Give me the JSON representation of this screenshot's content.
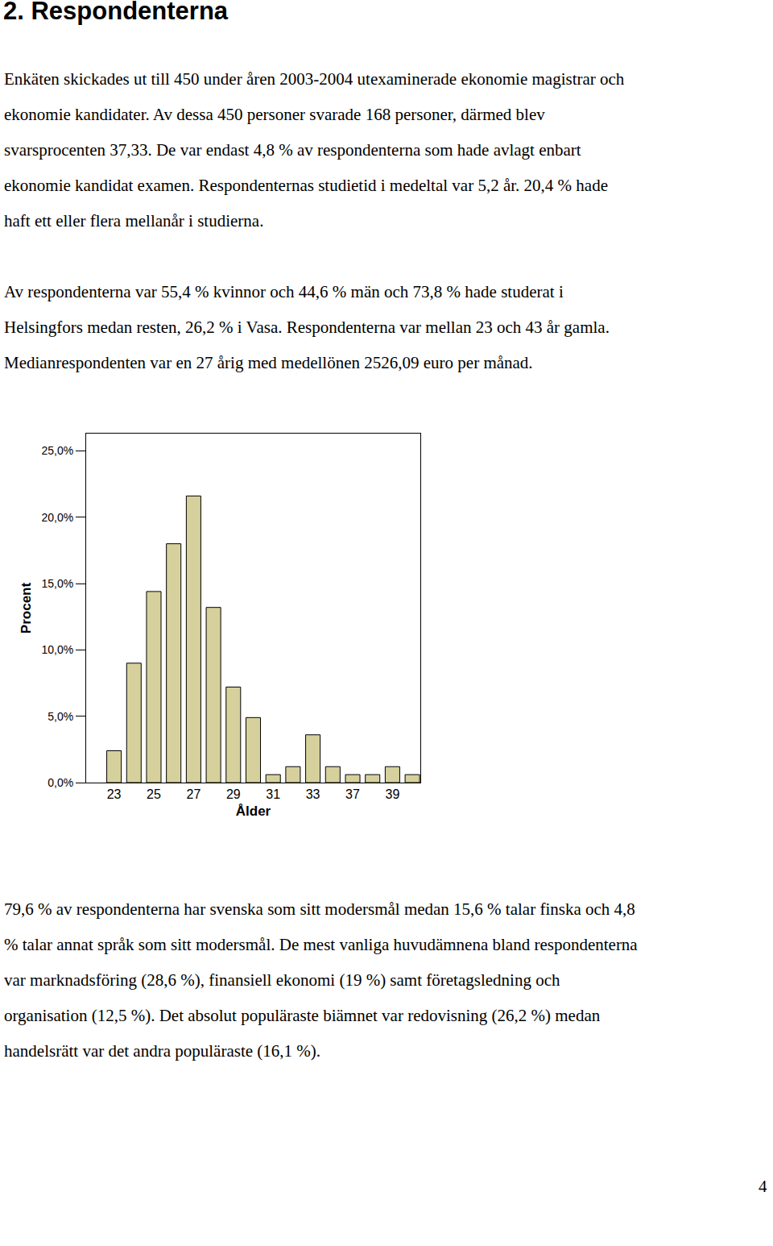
{
  "heading": "2. Respondenterna",
  "paragraphs": [
    [
      "Enkäten skickades ut till 450 under åren 2003-2004 utexaminerade ekonomie magistrar och",
      "ekonomie kandidater. Av dessa 450 personer svarade 168 personer, därmed blev",
      "svarsprocenten 37,33. De var endast 4,8 % av respondenterna som hade avlagt enbart",
      "ekonomie kandidat examen. Respondenternas studietid i medeltal var 5,2 år. 20,4 % hade",
      "haft ett eller flera mellanår i studierna."
    ],
    [
      "Av respondenterna var 55,4 % kvinnor och 44,6 % män och 73,8 % hade studerat i",
      "Helsingfors medan resten, 26,2 % i Vasa. Respondenterna var mellan 23 och 43 år gamla.",
      "Medianrespondenten var en 27 årig med medellönen 2526,09 euro per månad."
    ],
    [
      "79,6 % av respondenterna har svenska som sitt modersmål medan 15,6 % talar finska och 4,8",
      "% talar annat språk som sitt modersmål. De mest vanliga huvudämnena bland respondenterna",
      "var marknadsföring (28,6 %), finansiell ekonomi (19 %) samt företagsledning och",
      "organisation (12,5 %). Det absolut populäraste biämnet var redovisning (26,2 %) medan",
      "handelsrätt var det andra populäraste (16,1 %)."
    ]
  ],
  "chart_data": {
    "type": "bar",
    "x_label": "Ålder",
    "y_label": "Procent",
    "categories": [
      "23",
      null,
      "25",
      null,
      "27",
      null,
      "29",
      null,
      "31",
      null,
      "33",
      null,
      "37",
      null,
      "39",
      null
    ],
    "values": [
      2.4,
      9.0,
      14.4,
      18.0,
      21.6,
      13.2,
      7.2,
      4.9,
      0.6,
      1.2,
      3.6,
      1.2,
      0.6,
      0.6,
      1.2,
      0.6
    ],
    "color": "#d6d19c",
    "ylim": [
      0,
      26.3
    ],
    "yticks": [
      {
        "value": 0,
        "label": "0,0%"
      },
      {
        "value": 5,
        "label": "5,0%"
      },
      {
        "value": 10,
        "label": "10,0%"
      },
      {
        "value": 15,
        "label": "15,0%"
      },
      {
        "value": 20,
        "label": "20,0%"
      },
      {
        "value": 25,
        "label": "25,0%"
      }
    ],
    "grid": false
  },
  "page_number": "4"
}
